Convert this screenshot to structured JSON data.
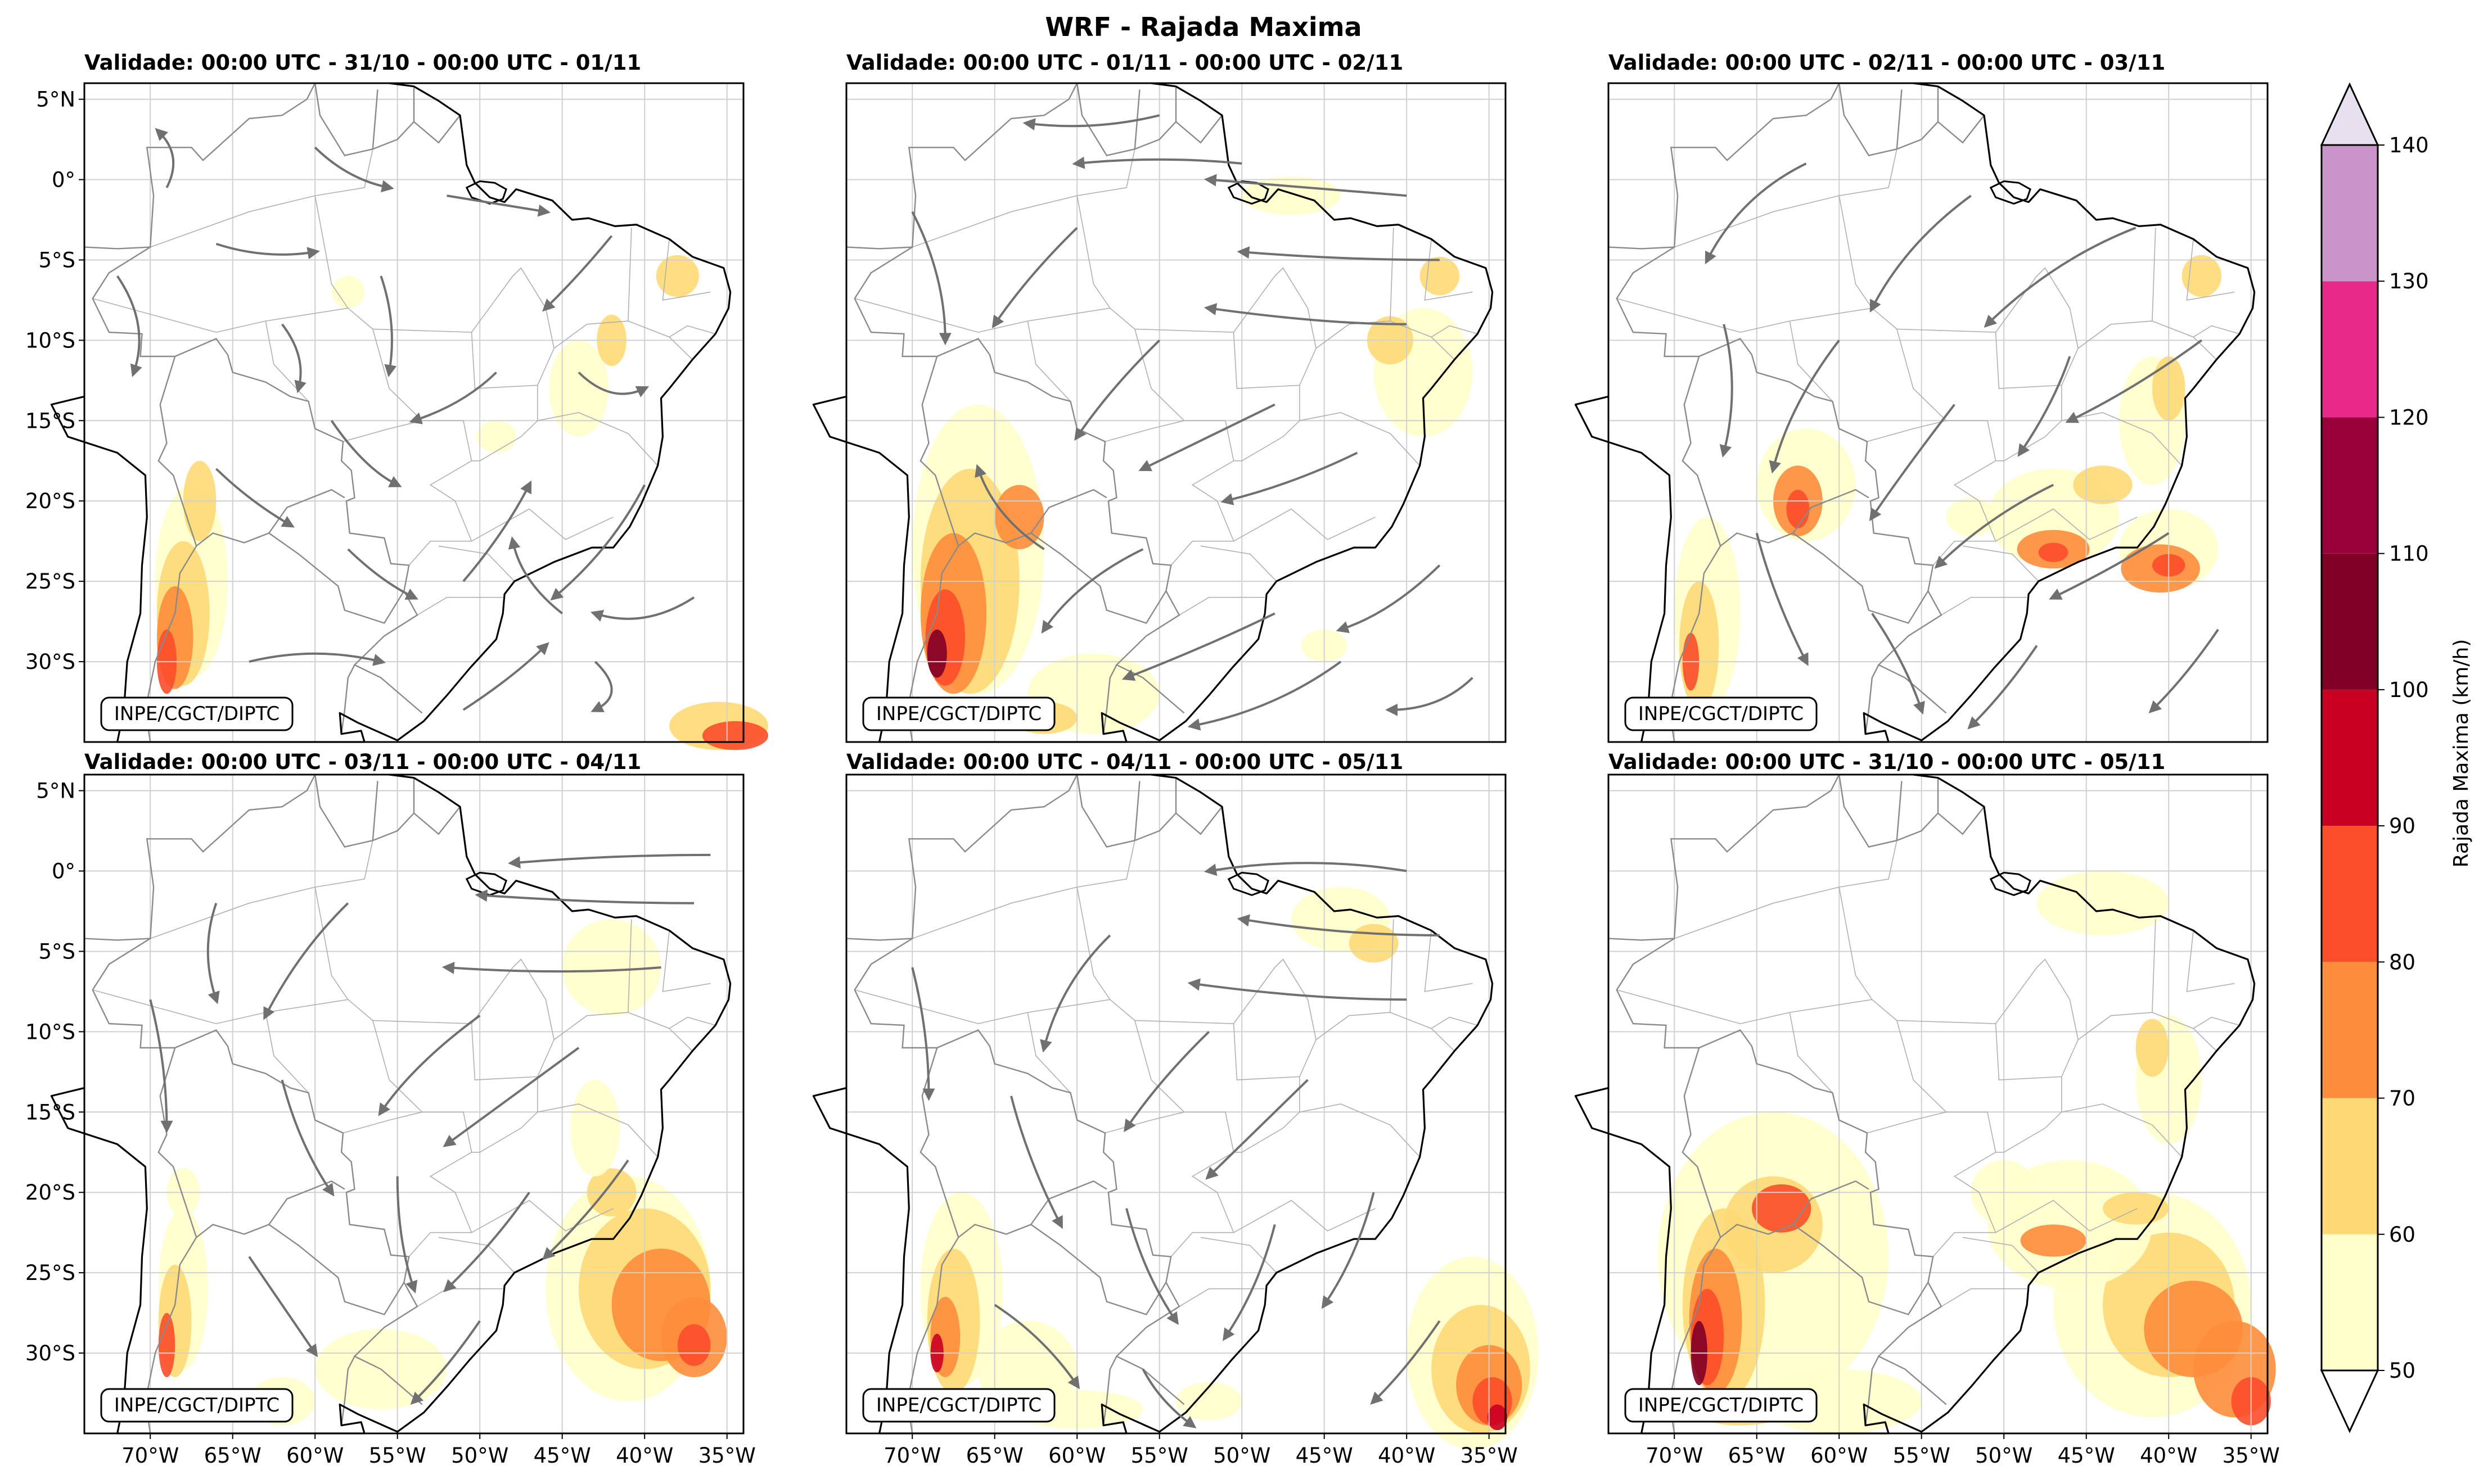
{
  "figure": {
    "title": "WRF - Rajada Maxima",
    "credit": "INPE/CGCT/DIPTC"
  },
  "panels": [
    {
      "title": "Validade: 00:00 UTC - 31/10 - 00:00 UTC - 01/11",
      "has_streamlines": true
    },
    {
      "title": "Validade: 00:00 UTC - 01/11 - 00:00 UTC - 02/11",
      "has_streamlines": true
    },
    {
      "title": "Validade: 00:00 UTC - 02/11 - 00:00 UTC - 03/11",
      "has_streamlines": true
    },
    {
      "title": "Validade: 00:00 UTC - 03/11 - 00:00 UTC - 04/11",
      "has_streamlines": true
    },
    {
      "title": "Validade: 00:00 UTC - 04/11 - 00:00 UTC - 05/11",
      "has_streamlines": true
    },
    {
      "title": "Validade: 00:00 UTC - 31/10 - 00:00 UTC - 05/11",
      "has_streamlines": false
    }
  ],
  "axes": {
    "lat_ticks": [
      {
        "value": 5,
        "label": "5°N"
      },
      {
        "value": 0,
        "label": "0°"
      },
      {
        "value": -5,
        "label": "5°S"
      },
      {
        "value": -10,
        "label": "10°S"
      },
      {
        "value": -15,
        "label": "15°S"
      },
      {
        "value": -20,
        "label": "20°S"
      },
      {
        "value": -25,
        "label": "25°S"
      },
      {
        "value": -30,
        "label": "30°S"
      }
    ],
    "lon_ticks": [
      {
        "value": -70,
        "label": "70°W"
      },
      {
        "value": -65,
        "label": "65°W"
      },
      {
        "value": -60,
        "label": "60°W"
      },
      {
        "value": -55,
        "label": "55°W"
      },
      {
        "value": -50,
        "label": "50°W"
      },
      {
        "value": -45,
        "label": "45°W"
      },
      {
        "value": -40,
        "label": "40°W"
      },
      {
        "value": -35,
        "label": "35°W"
      }
    ],
    "lon_range": [
      -74,
      -34
    ],
    "lat_range": [
      -35,
      6
    ]
  },
  "colorbar": {
    "label": "Rajada Maxima (km/h)",
    "levels": [
      {
        "value": 50,
        "label": "50"
      },
      {
        "value": 60,
        "label": "60"
      },
      {
        "value": 70,
        "label": "70"
      },
      {
        "value": 80,
        "label": "80"
      },
      {
        "value": 90,
        "label": "90"
      },
      {
        "value": 100,
        "label": "100"
      },
      {
        "value": 110,
        "label": "110"
      },
      {
        "value": 120,
        "label": "120"
      },
      {
        "value": 130,
        "label": "130"
      },
      {
        "value": 140,
        "label": "140"
      }
    ],
    "colors": [
      "#ffffcc",
      "#fed976",
      "#fd8d3c",
      "#fc4e2a",
      "#c90022",
      "#800026",
      "#99003a",
      "#e7298a",
      "#c994c7"
    ],
    "over_color": "#e7e1ef",
    "under_color": "#ffffff"
  },
  "colors": {
    "stream": "#707070",
    "coast": "#000000",
    "border": "#8a8a8a",
    "grid": "#d0d0d0"
  }
}
